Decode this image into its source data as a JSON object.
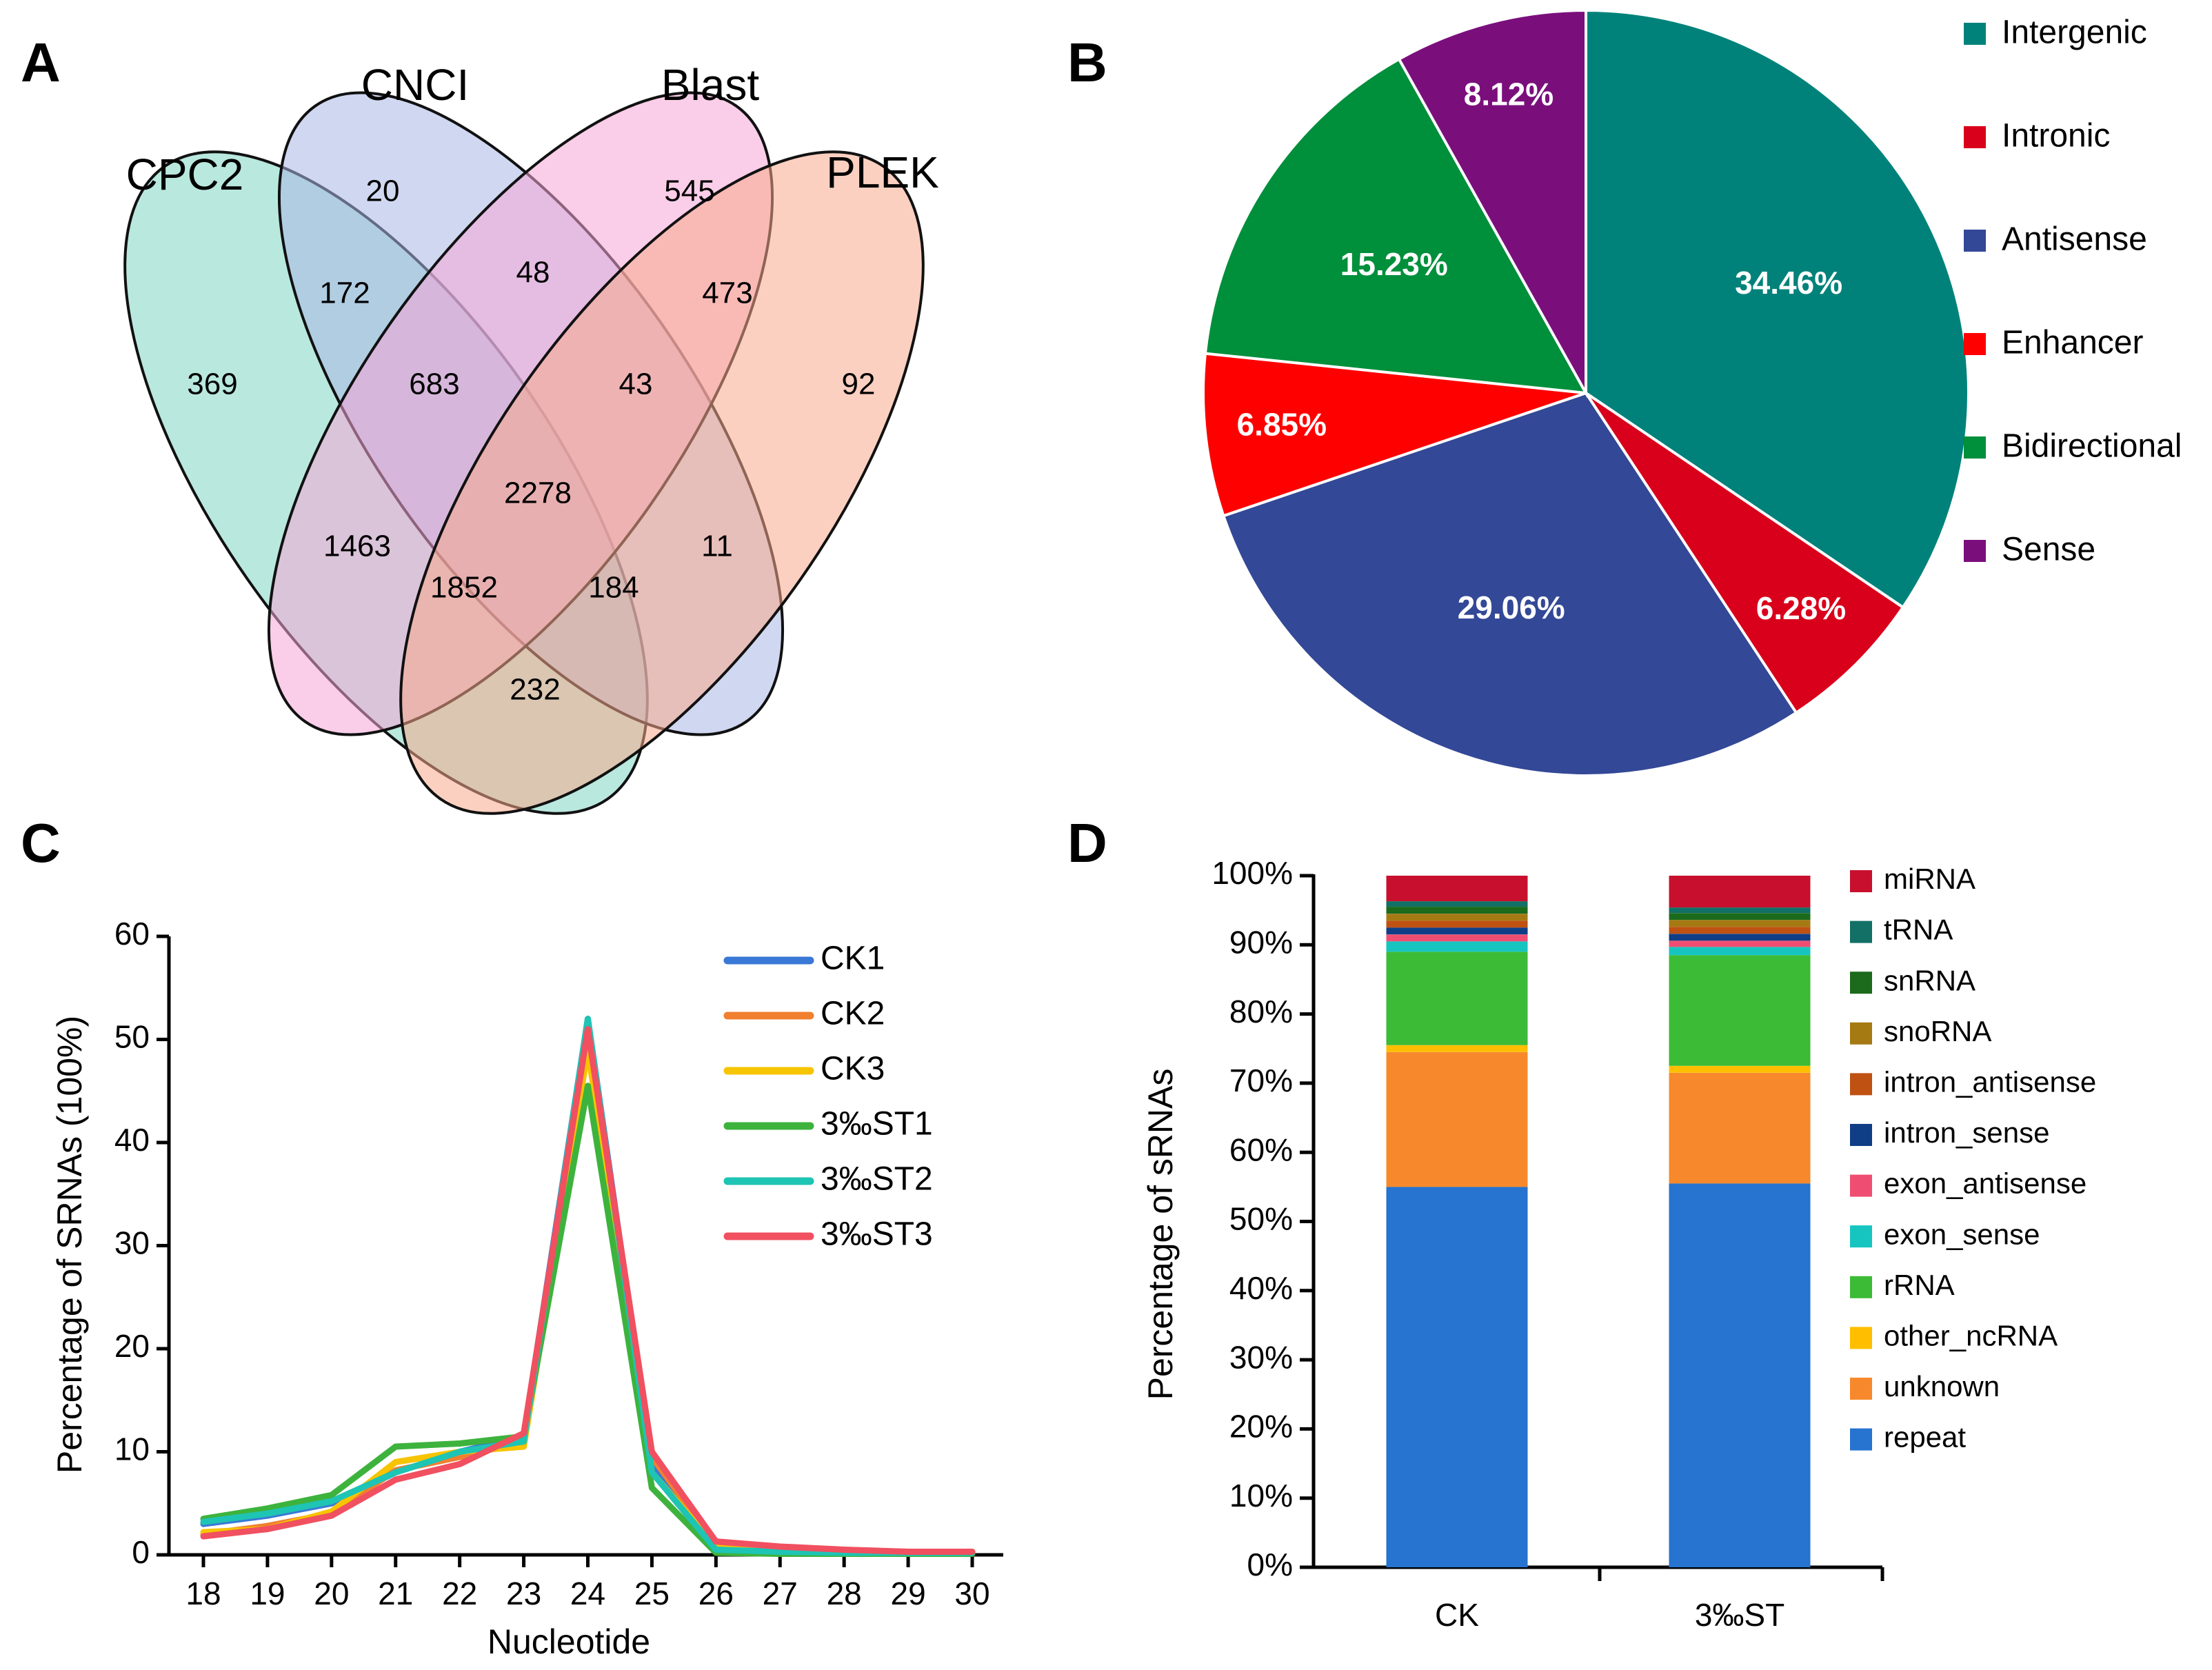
{
  "panels": {
    "a": "A",
    "b": "B",
    "c": "C",
    "d": "D"
  },
  "chart_data": [
    {
      "type": "venn",
      "panel": "A",
      "sets": [
        {
          "name": "CPC2",
          "color": "#7fd6c3"
        },
        {
          "name": "CNCI",
          "color": "#a9b6e6"
        },
        {
          "name": "Blast",
          "color": "#f6a6d6"
        },
        {
          "name": "PLEK",
          "color": "#f8a98d"
        }
      ],
      "regions": [
        {
          "sets": [
            "CPC2"
          ],
          "value": "369"
        },
        {
          "sets": [
            "CNCI"
          ],
          "value": "20"
        },
        {
          "sets": [
            "Blast"
          ],
          "value": "545"
        },
        {
          "sets": [
            "PLEK"
          ],
          "value": "92"
        },
        {
          "sets": [
            "CPC2",
            "CNCI"
          ],
          "value": "172"
        },
        {
          "sets": [
            "CNCI",
            "Blast"
          ],
          "value": "48"
        },
        {
          "sets": [
            "Blast",
            "PLEK"
          ],
          "value": "473"
        },
        {
          "sets": [
            "CPC2",
            "CNCI",
            "Blast"
          ],
          "value": "683"
        },
        {
          "sets": [
            "CNCI",
            "Blast",
            "PLEK"
          ],
          "value": "43"
        },
        {
          "sets": [
            "CPC2",
            "CNCI",
            "Blast",
            "PLEK"
          ],
          "value": "2278"
        },
        {
          "sets": [
            "CPC2",
            "Blast"
          ],
          "value": "1463"
        },
        {
          "sets": [
            "CNCI",
            "PLEK"
          ],
          "value": "11"
        },
        {
          "sets": [
            "CPC2",
            "Blast",
            "PLEK"
          ],
          "value": "1852"
        },
        {
          "sets": [
            "CPC2",
            "CNCI",
            "PLEK"
          ],
          "value": "184"
        },
        {
          "sets": [
            "CPC2",
            "PLEK"
          ],
          "value": "232"
        }
      ]
    },
    {
      "type": "pie",
      "panel": "B",
      "start": "top, clockwise",
      "slices": [
        {
          "label": "Intergenic",
          "value": 34.46,
          "text": "34.46%",
          "color": "#00827a"
        },
        {
          "label": "Intronic",
          "value": 6.28,
          "text": "6.28%",
          "color": "#d9001b"
        },
        {
          "label": "Antisense",
          "value": 29.06,
          "text": "29.06%",
          "color": "#334896"
        },
        {
          "label": "Enhancer",
          "value": 6.85,
          "text": "6.85%",
          "color": "#ff0000"
        },
        {
          "label": "Bidirectional",
          "value": 15.23,
          "text": "15.23%",
          "color": "#008f3b"
        },
        {
          "label": "Sense",
          "value": 8.12,
          "text": "8.12%",
          "color": "#7a0f7c"
        }
      ],
      "legend": "right"
    },
    {
      "type": "line",
      "panel": "C",
      "xlabel": "Nucleotide",
      "ylabel": "Percentage of SRNAs (100%)",
      "x": [
        18,
        19,
        20,
        21,
        22,
        23,
        24,
        25,
        26,
        27,
        28,
        29,
        30
      ],
      "ylim": [
        0,
        60
      ],
      "yticks": [
        0,
        10,
        20,
        30,
        40,
        50,
        60
      ],
      "legend": "top-right",
      "series": [
        {
          "name": "CK1",
          "color": "#3a78d6",
          "values": [
            3.0,
            3.8,
            5.0,
            8.0,
            10.0,
            11.5,
            52.0,
            9.0,
            0.6,
            0.4,
            0.3,
            0.2,
            0.2
          ]
        },
        {
          "name": "CK2",
          "color": "#f08030",
          "values": [
            2.0,
            2.8,
            4.0,
            8.2,
            9.5,
            11.0,
            50.5,
            9.5,
            1.0,
            0.6,
            0.4,
            0.3,
            0.3
          ]
        },
        {
          "name": "CK3",
          "color": "#f7c400",
          "values": [
            2.2,
            2.5,
            4.2,
            9.0,
            10.0,
            10.5,
            49.0,
            8.0,
            0.8,
            0.5,
            0.3,
            0.2,
            0.2
          ]
        },
        {
          "name": "3‰ST1",
          "color": "#3db33d",
          "values": [
            3.5,
            4.5,
            5.8,
            10.5,
            10.8,
            11.5,
            45.5,
            6.5,
            0.2,
            0.1,
            0.1,
            0.1,
            0.1
          ]
        },
        {
          "name": "3‰ST2",
          "color": "#1ec4b4",
          "values": [
            3.2,
            4.0,
            5.2,
            8.0,
            10.0,
            11.0,
            52.0,
            8.0,
            0.5,
            0.3,
            0.2,
            0.2,
            0.2
          ]
        },
        {
          "name": "3‰ST3",
          "color": "#f05060",
          "values": [
            1.8,
            2.5,
            3.8,
            7.3,
            8.8,
            11.8,
            51.0,
            10.0,
            1.3,
            0.8,
            0.5,
            0.3,
            0.3
          ]
        }
      ]
    },
    {
      "type": "bar",
      "panel": "D",
      "stacked": true,
      "ylabel": "Percentage of sRNAs",
      "categories": [
        "CK",
        "3‰ST"
      ],
      "ylim": [
        0,
        100
      ],
      "yticks": [
        "0%",
        "10%",
        "20%",
        "30%",
        "40%",
        "50%",
        "60%",
        "70%",
        "80%",
        "90%",
        "100%"
      ],
      "legend": "right",
      "series": [
        {
          "name": "repeat",
          "color": "#2673d0",
          "values": [
            55.0,
            55.5
          ]
        },
        {
          "name": "unknown",
          "color": "#f7892c",
          "values": [
            19.5,
            16.0
          ]
        },
        {
          "name": "other_ncRNA",
          "color": "#ffbf00",
          "values": [
            1.0,
            1.0
          ]
        },
        {
          "name": "rRNA",
          "color": "#3cbb36",
          "values": [
            13.5,
            16.0
          ]
        },
        {
          "name": "exon_sense",
          "color": "#16c5c0",
          "values": [
            1.5,
            1.2
          ]
        },
        {
          "name": "exon_antisense",
          "color": "#ef4e72",
          "values": [
            1.0,
            0.9
          ]
        },
        {
          "name": "intron_sense",
          "color": "#0f3e86",
          "values": [
            1.0,
            1.0
          ]
        },
        {
          "name": "intron_antisense",
          "color": "#bf5112",
          "values": [
            1.0,
            1.0
          ]
        },
        {
          "name": "snoRNA",
          "color": "#a67a13",
          "values": [
            1.0,
            1.0
          ]
        },
        {
          "name": "snRNA",
          "color": "#1c6b1c",
          "values": [
            1.0,
            1.0
          ]
        },
        {
          "name": "tRNA",
          "color": "#127066",
          "values": [
            0.8,
            0.8
          ]
        },
        {
          "name": "miRNA",
          "color": "#c8102e",
          "values": [
            3.7,
            4.6
          ]
        }
      ]
    }
  ]
}
